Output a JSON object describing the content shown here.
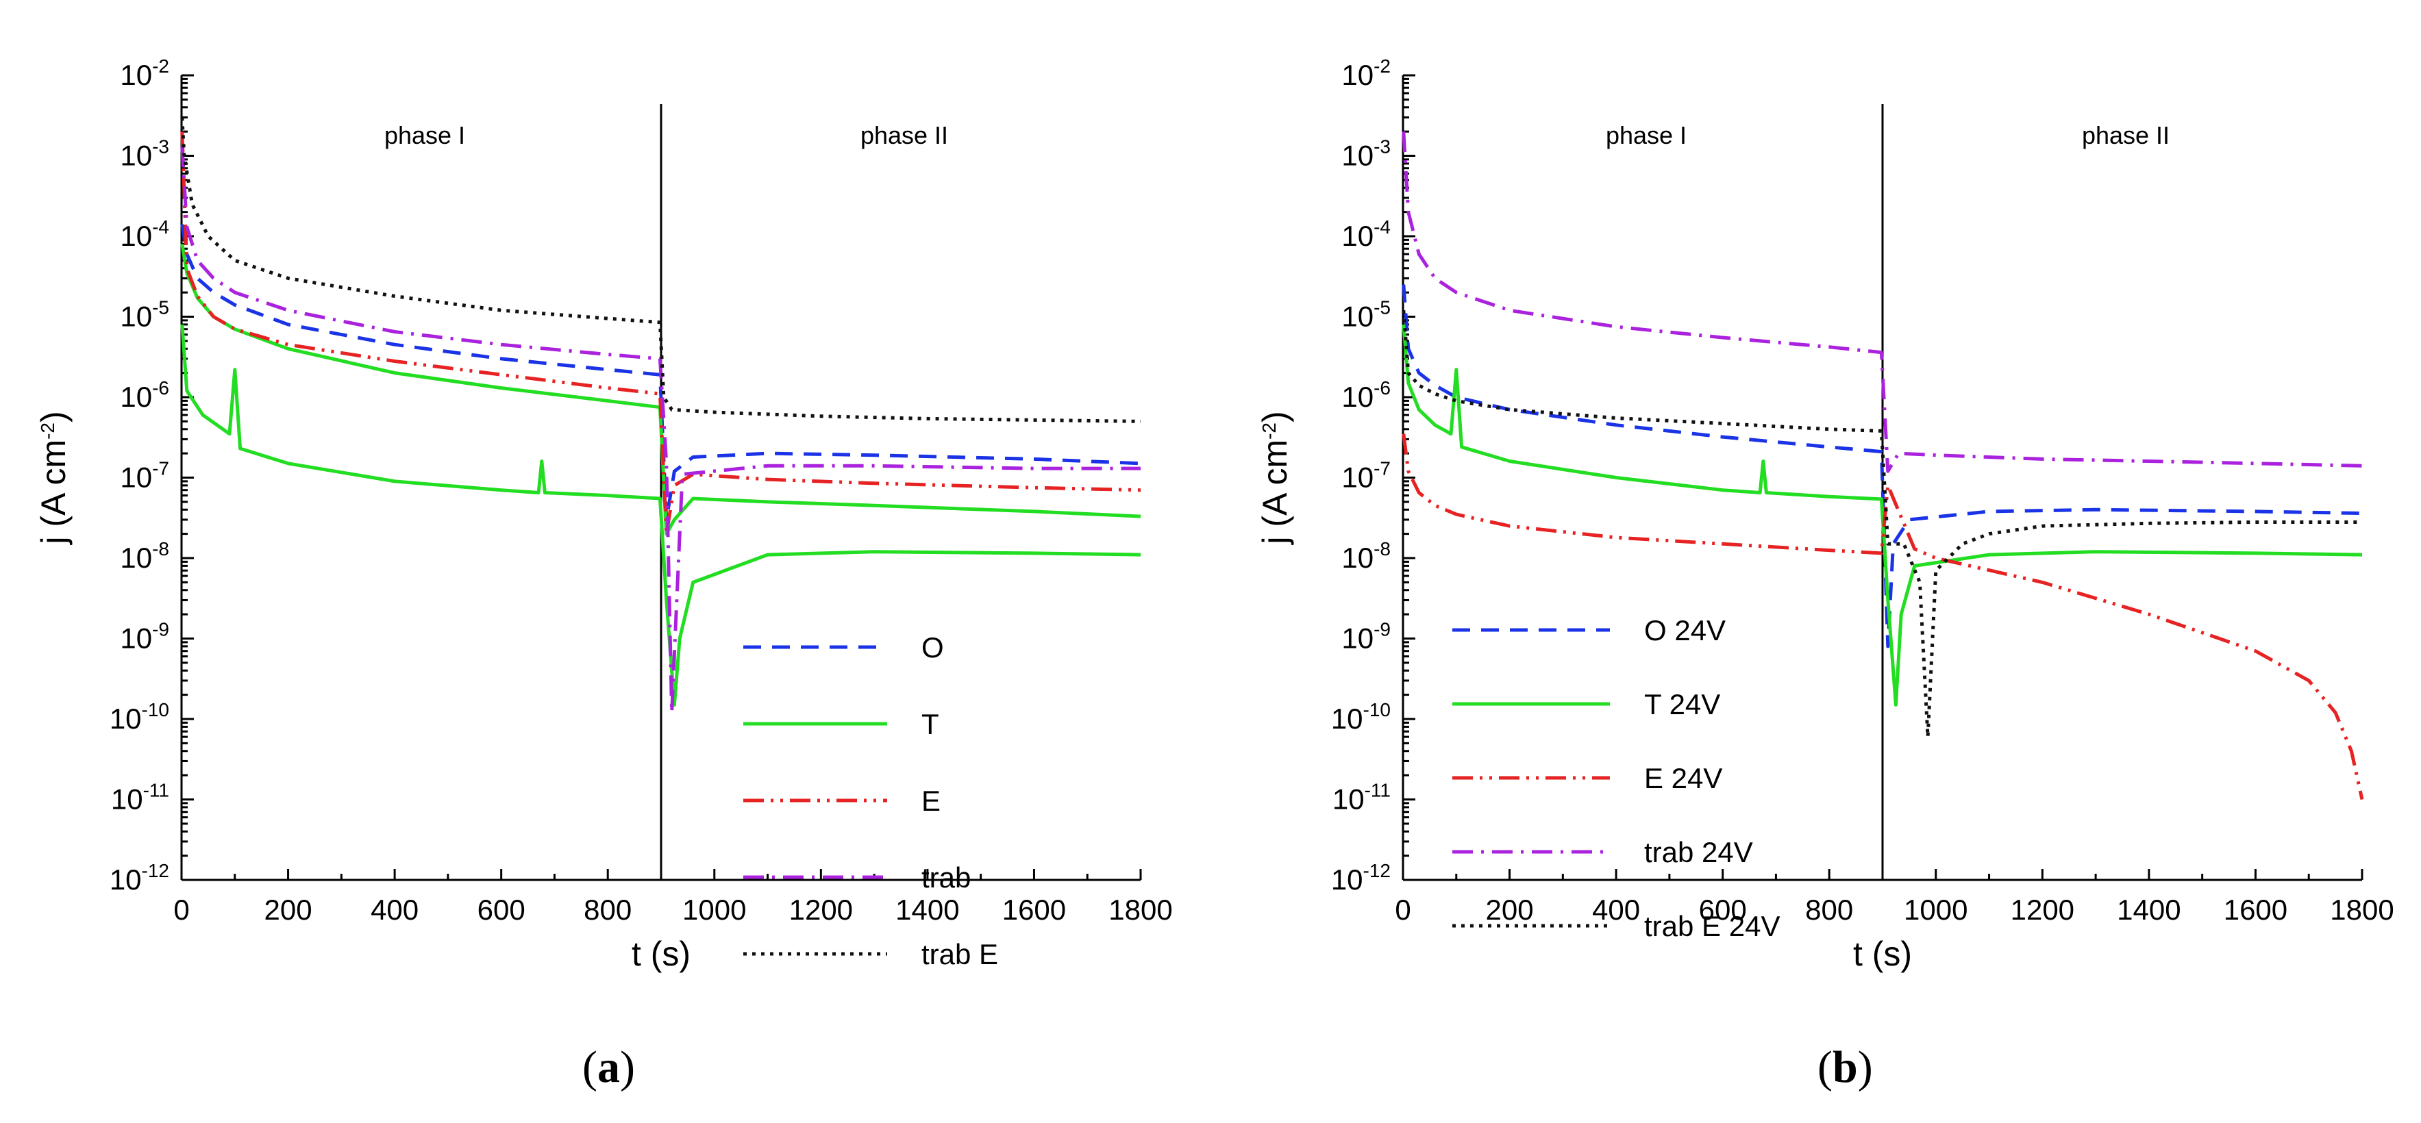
{
  "chart_data": [
    {
      "type": "line",
      "panel_label": "(a)",
      "panel_label_bold": "a",
      "xlabel": "t (s)",
      "ylabel": "j (A cm-2)",
      "ylabel_main": "j (A cm",
      "ylabel_sup": "-2",
      "ylabel_close": ")",
      "xlim": [
        0,
        1800
      ],
      "ylim": [
        1e-12,
        0.01
      ],
      "yscale": "log",
      "xticks": [
        0,
        200,
        400,
        600,
        800,
        1000,
        1200,
        1400,
        1600,
        1800
      ],
      "xtick_labels": [
        "0",
        "200",
        "400",
        "600",
        "800",
        "1000",
        "1200",
        "1400",
        "1600",
        "1800"
      ],
      "ytick_exponents": [
        -12,
        -11,
        -10,
        -9,
        -8,
        -7,
        -6,
        -5,
        -4,
        -3,
        -2
      ],
      "ytick_base": "10",
      "ytick_labels": [
        "-12",
        "-11",
        "-10",
        "-9",
        "-8",
        "-7",
        "-6",
        "-5",
        "-4",
        "-3",
        "-2"
      ],
      "phase_boundary_x": 900,
      "phase_labels": [
        "phase I",
        "phase II"
      ],
      "legend_position": "bottom-right",
      "series": [
        {
          "name": "O",
          "color": "#1a33e6",
          "dash": "dashed",
          "x": [
            1,
            10,
            30,
            60,
            100,
            200,
            400,
            600,
            800,
            898,
            910,
            925,
            960,
            1100,
            1300,
            1600,
            1800
          ],
          "y": [
            0.00014,
            6e-05,
            3e-05,
            2e-05,
            1.4e-05,
            8e-06,
            4.5e-06,
            3e-06,
            2.2e-06,
            1.9e-06,
            3e-08,
            1.2e-07,
            1.8e-07,
            2e-07,
            1.9e-07,
            1.7e-07,
            1.5e-07
          ]
        },
        {
          "name": "T",
          "color": "#22dd22",
          "dash": "solid",
          "x": [
            1,
            10,
            30,
            60,
            100,
            200,
            400,
            600,
            800,
            898,
            910,
            925,
            960,
            1100,
            1300,
            1600,
            1800
          ],
          "y": [
            8e-05,
            3.5e-05,
            1.7e-05,
            1e-05,
            7e-06,
            4e-06,
            2e-06,
            1.3e-06,
            9e-07,
            7.5e-07,
            2e-08,
            3e-08,
            5.5e-08,
            5e-08,
            4.5e-08,
            3.8e-08,
            3.3e-08
          ]
        },
        {
          "name": "T",
          "color": "#22dd22",
          "dash": "solid",
          "legend": false,
          "x": [
            1,
            10,
            40,
            90,
            100,
            110,
            200,
            400,
            600,
            670,
            676,
            682,
            800,
            898,
            910,
            925,
            935,
            960,
            1100,
            1300,
            1600,
            1800
          ],
          "y": [
            8e-06,
            1.2e-06,
            6e-07,
            3.5e-07,
            2.2e-06,
            2.3e-07,
            1.5e-07,
            9e-08,
            7e-08,
            6.5e-08,
            1.6e-07,
            6.5e-08,
            6e-08,
            5.5e-08,
            3e-09,
            1.5e-10,
            1e-09,
            5e-09,
            1.1e-08,
            1.2e-08,
            1.15e-08,
            1.1e-08
          ]
        },
        {
          "name": "E",
          "color": "#e62222",
          "dash": "dashdotdot",
          "x": [
            1,
            10,
            30,
            60,
            100,
            200,
            400,
            600,
            800,
            898,
            910,
            925,
            960,
            1100,
            1300,
            1600,
            1800
          ],
          "y": [
            0.002,
            4e-05,
            1.8e-05,
            1e-05,
            7e-06,
            4.5e-06,
            2.8e-06,
            1.9e-06,
            1.3e-06,
            1.1e-06,
            2e-08,
            8e-08,
            1.1e-07,
            9.5e-08,
            8.5e-08,
            7.5e-08,
            7e-08
          ]
        },
        {
          "name": "trab",
          "color": "#aa22dd",
          "dash": "dashdot",
          "x": [
            1,
            10,
            30,
            60,
            100,
            200,
            400,
            600,
            800,
            898,
            910,
            920,
            940,
            1100,
            1300,
            1600,
            1800
          ],
          "y": [
            0.0013,
            0.00013,
            5e-05,
            3e-05,
            2e-05,
            1.2e-05,
            6.5e-06,
            4.5e-06,
            3.4e-06,
            3e-06,
            1.5e-07,
            1.2e-10,
            1.1e-07,
            1.4e-07,
            1.4e-07,
            1.3e-07,
            1.3e-07
          ]
        },
        {
          "name": "trab E",
          "color": "#111111",
          "dash": "dotted",
          "x": [
            1,
            5,
            20,
            50,
            100,
            200,
            400,
            600,
            800,
            898,
            905,
            920,
            1000,
            1200,
            1400,
            1600,
            1800
          ],
          "y": [
            0.003,
            0.001,
            0.00025,
            0.0001,
            5e-05,
            3e-05,
            1.8e-05,
            1.2e-05,
            9.5e-06,
            8.5e-06,
            1e-06,
            7e-07,
            6.5e-07,
            5.8e-07,
            5.4e-07,
            5.2e-07,
            5e-07
          ]
        }
      ]
    },
    {
      "type": "line",
      "panel_label": "(b)",
      "panel_label_bold": "b",
      "xlabel": "t (s)",
      "ylabel": "j (A cm-2)",
      "ylabel_main": "j (A cm",
      "ylabel_sup": "-2",
      "ylabel_close": ")",
      "xlim": [
        0,
        1800
      ],
      "ylim": [
        1e-12,
        0.01
      ],
      "yscale": "log",
      "xticks": [
        0,
        200,
        400,
        600,
        800,
        1000,
        1200,
        1400,
        1600,
        1800
      ],
      "xtick_labels": [
        "0",
        "200",
        "400",
        "600",
        "800",
        "1000",
        "1200",
        "1400",
        "1600",
        "1800"
      ],
      "ytick_exponents": [
        -12,
        -11,
        -10,
        -9,
        -8,
        -7,
        -6,
        -5,
        -4,
        -3,
        -2
      ],
      "ytick_base": "10",
      "ytick_labels": [
        "-12",
        "-11",
        "-10",
        "-9",
        "-8",
        "-7",
        "-6",
        "-5",
        "-4",
        "-3",
        "-2"
      ],
      "phase_boundary_x": 900,
      "phase_labels": [
        "phase I",
        "phase II"
      ],
      "legend_position": "bottom-left",
      "series": [
        {
          "name": "O 24V",
          "color": "#1a33e6",
          "dash": "dashed",
          "x": [
            1,
            10,
            30,
            60,
            100,
            200,
            400,
            600,
            800,
            898,
            910,
            920,
            950,
            1100,
            1300,
            1600,
            1800
          ],
          "y": [
            2.5e-05,
            4e-06,
            2e-06,
            1.4e-06,
            1e-06,
            7e-07,
            4.5e-07,
            3.2e-07,
            2.4e-07,
            2.1e-07,
            8e-10,
            1.5e-08,
            3e-08,
            3.8e-08,
            4e-08,
            3.8e-08,
            3.6e-08
          ]
        },
        {
          "name": "T 24V",
          "color": "#22dd22",
          "dash": "solid",
          "x": [
            1,
            10,
            30,
            60,
            90,
            100,
            110,
            200,
            400,
            600,
            670,
            676,
            682,
            800,
            898,
            910,
            925,
            935,
            960,
            1100,
            1300,
            1600,
            1800
          ],
          "y": [
            8e-06,
            1.5e-06,
            7e-07,
            4.5e-07,
            3.5e-07,
            2.2e-06,
            2.4e-07,
            1.6e-07,
            1e-07,
            7e-08,
            6.5e-08,
            1.6e-07,
            6.5e-08,
            5.8e-08,
            5.4e-08,
            3e-09,
            1.5e-10,
            2e-09,
            8e-09,
            1.1e-08,
            1.2e-08,
            1.15e-08,
            1.1e-08
          ]
        },
        {
          "name": "E 24V",
          "color": "#e62222",
          "dash": "dashdotdot",
          "x": [
            1,
            10,
            30,
            60,
            100,
            200,
            400,
            600,
            800,
            898,
            910,
            960,
            1000,
            1200,
            1400,
            1600,
            1700,
            1750,
            1780,
            1800
          ],
          "y": [
            3.5e-07,
            1.2e-07,
            6.5e-08,
            4.5e-08,
            3.5e-08,
            2.5e-08,
            1.8e-08,
            1.5e-08,
            1.25e-08,
            1.15e-08,
            8e-08,
            1.3e-08,
            1e-08,
            5e-09,
            2e-09,
            7e-10,
            3e-10,
            1.2e-10,
            4e-11,
            1e-11
          ]
        },
        {
          "name": "trab 24V",
          "color": "#aa22dd",
          "dash": "dashdot",
          "x": [
            1,
            10,
            30,
            60,
            100,
            200,
            400,
            600,
            800,
            898,
            910,
            930,
            1000,
            1200,
            1400,
            1600,
            1800
          ],
          "y": [
            0.002,
            0.0002,
            6e-05,
            3e-05,
            2e-05,
            1.2e-05,
            7.5e-06,
            5.5e-06,
            4.2e-06,
            3.6e-06,
            1.2e-07,
            2e-07,
            1.9e-07,
            1.7e-07,
            1.6e-07,
            1.5e-07,
            1.4e-07
          ]
        },
        {
          "name": "trab E 24V",
          "color": "#111111",
          "dash": "dotted",
          "x": [
            1,
            10,
            30,
            60,
            100,
            200,
            400,
            600,
            800,
            898,
            910,
            940,
            970,
            985,
            1000,
            1050,
            1100,
            1200,
            1400,
            1600,
            1800
          ],
          "y": [
            1.2e-05,
            2e-06,
            1.4e-06,
            1.1e-06,
            9e-07,
            7e-07,
            5.5e-07,
            4.7e-07,
            4e-07,
            3.8e-07,
            1.5e-08,
            1.5e-08,
            5e-09,
            6e-11,
            7e-09,
            1.5e-08,
            2e-08,
            2.5e-08,
            2.7e-08,
            2.8e-08,
            2.8e-08
          ]
        }
      ]
    }
  ]
}
